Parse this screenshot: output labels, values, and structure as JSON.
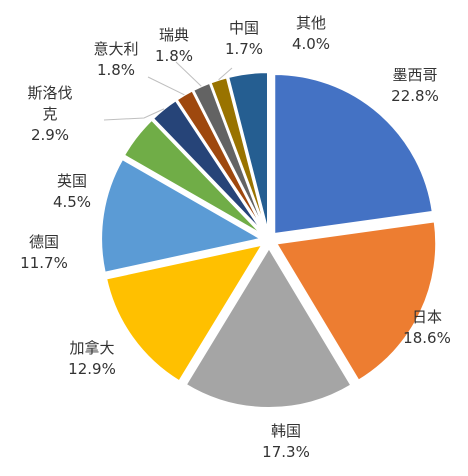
{
  "chart_data": {
    "type": "pie",
    "title": "",
    "exploded": true,
    "start_angle_deg": 0,
    "direction": "clockwise",
    "data_labels": "category-and-percent",
    "legend": "none",
    "slices": [
      {
        "label": "墨西哥",
        "value": 22.8,
        "value_text": "22.8%",
        "color": "#4472C4"
      },
      {
        "label": "日本",
        "value": 18.6,
        "value_text": "18.6%",
        "color": "#ED7D31"
      },
      {
        "label": "韩国",
        "value": 17.3,
        "value_text": "17.3%",
        "color": "#A5A5A5"
      },
      {
        "label": "加拿大",
        "value": 12.9,
        "value_text": "12.9%",
        "color": "#FFC000"
      },
      {
        "label": "德国",
        "value": 11.7,
        "value_text": "11.7%",
        "color": "#5B9BD5"
      },
      {
        "label": "英国",
        "value": 4.5,
        "value_text": "4.5%",
        "color": "#70AD47"
      },
      {
        "label": "斯洛伐克",
        "value": 2.9,
        "value_text": "2.9%",
        "color": "#264478"
      },
      {
        "label": "意大利",
        "value": 1.8,
        "value_text": "1.8%",
        "color": "#9E480E"
      },
      {
        "label": "瑞典",
        "value": 1.8,
        "value_text": "1.8%",
        "color": "#636363"
      },
      {
        "label": "中国",
        "value": 1.7,
        "value_text": "1.7%",
        "color": "#997300"
      },
      {
        "label": "其他",
        "value": 4.0,
        "value_text": "4.0%",
        "color": "#255E91"
      }
    ]
  }
}
